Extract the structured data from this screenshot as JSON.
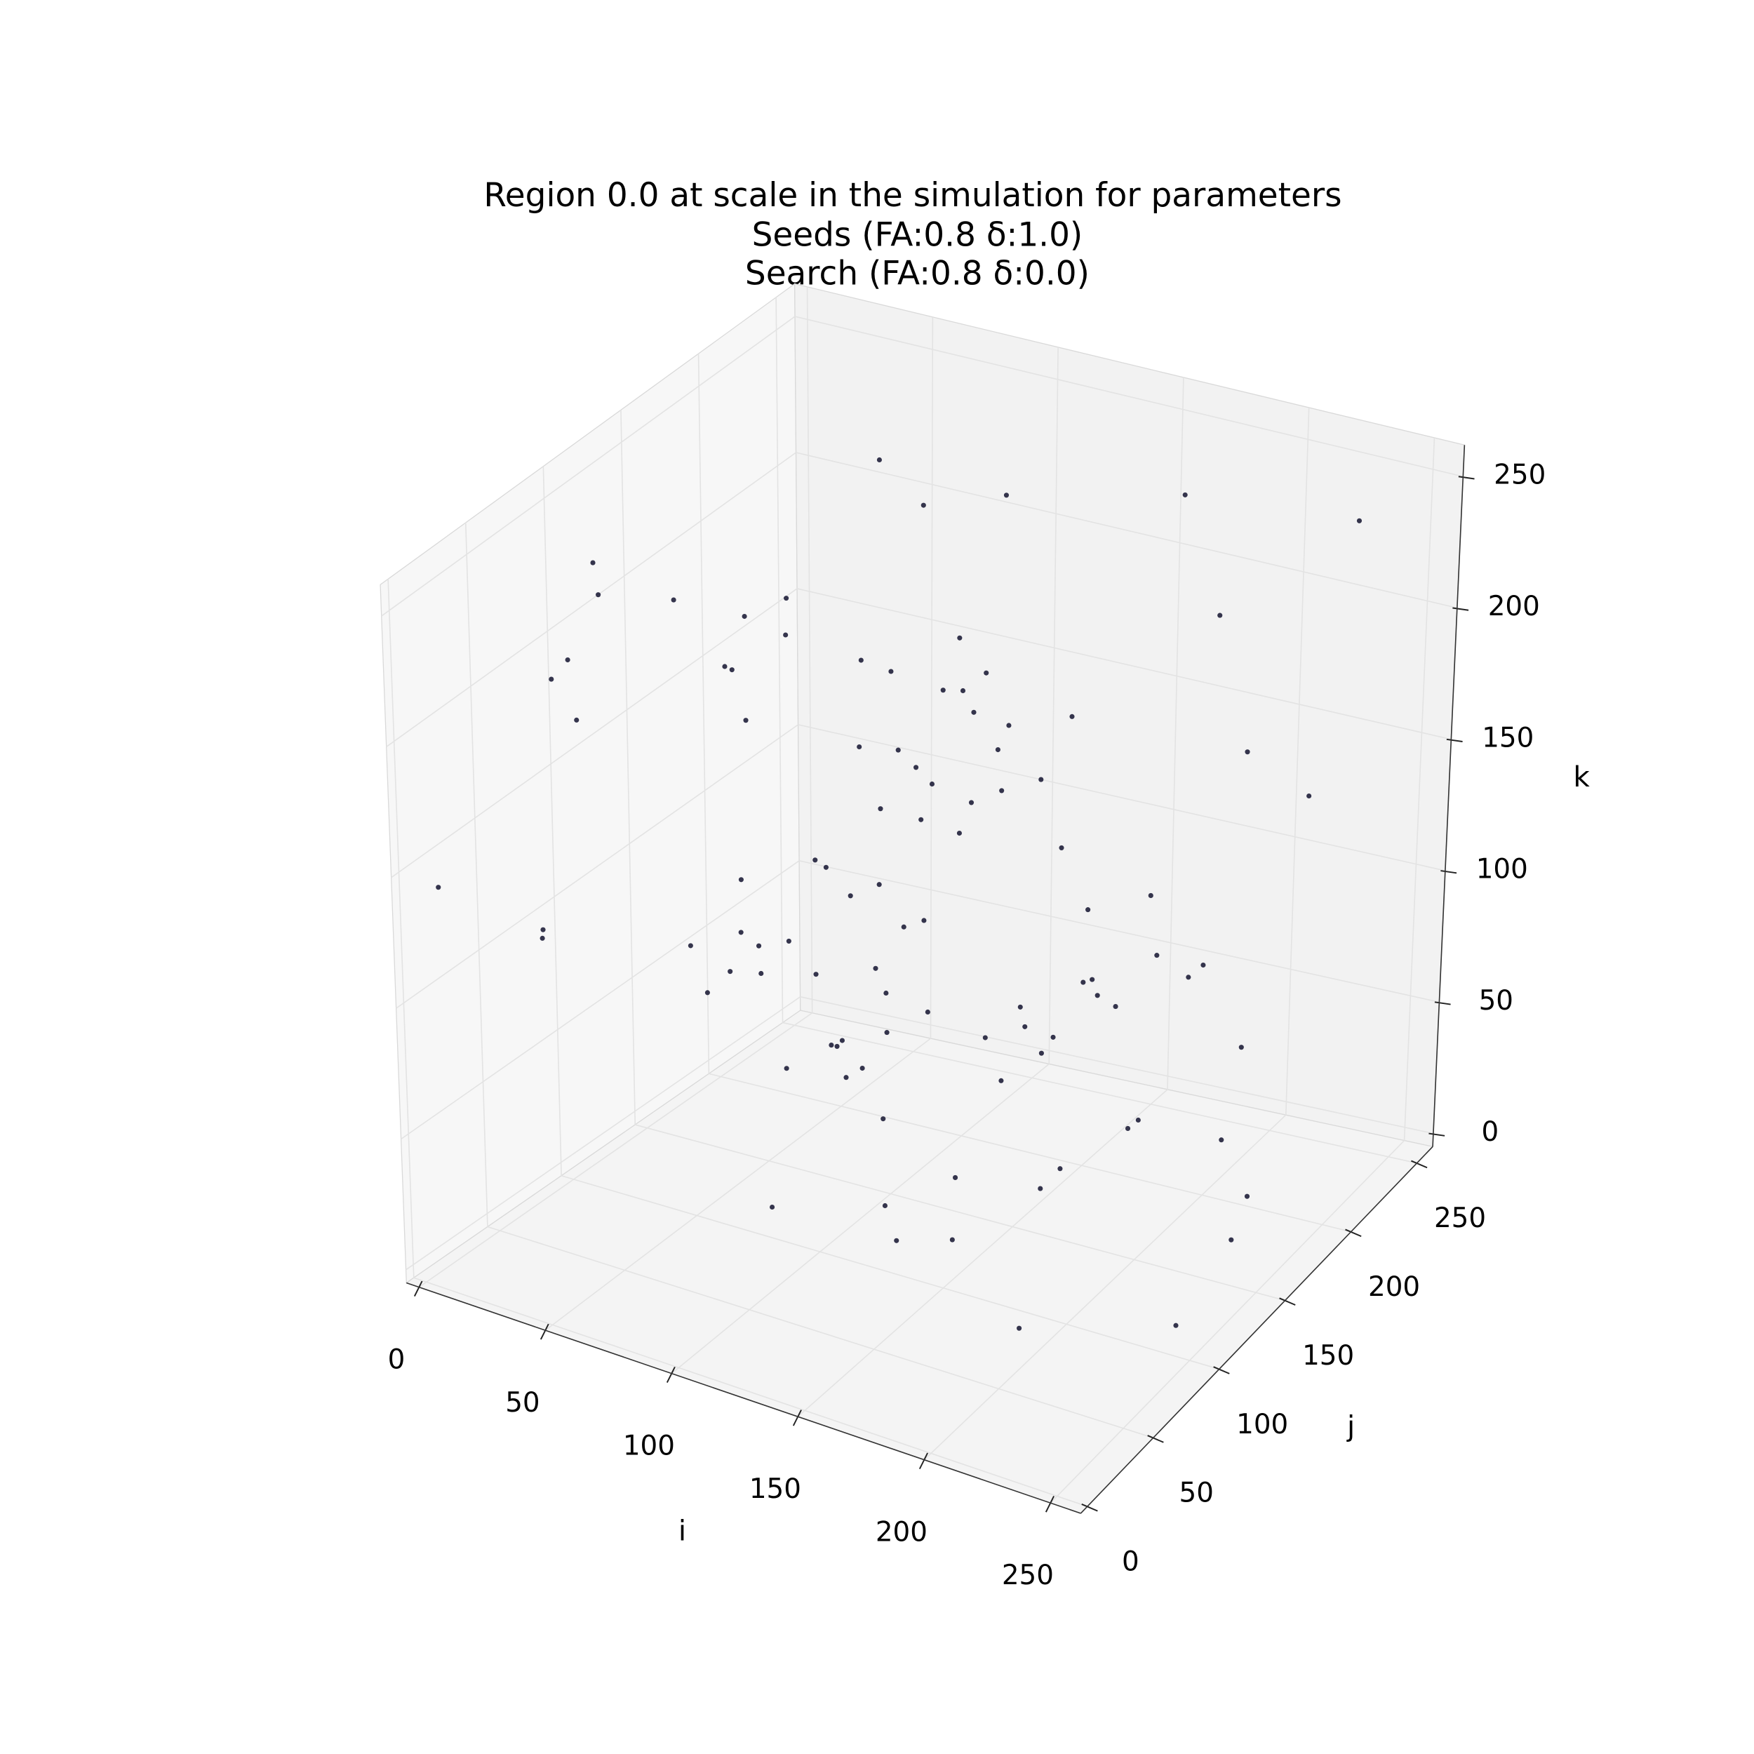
{
  "chart_data": {
    "type": "scatter3d",
    "title": [
      "Region 0.0 at scale in the simulation for parameters",
      "Seeds (FA:0.8 δ:1.0)",
      "Search (FA:0.8 δ:0.0)"
    ],
    "xlabel": "i",
    "ylabel": "j",
    "zlabel": "k",
    "xlim": [
      -5,
      262
    ],
    "ylim": [
      -5,
      262
    ],
    "zlim": [
      -5,
      262
    ],
    "xticks": [
      0,
      50,
      100,
      150,
      200,
      250
    ],
    "yticks": [
      0,
      50,
      100,
      150,
      200,
      250
    ],
    "zticks": [
      0,
      50,
      100,
      150,
      200,
      250
    ],
    "grid": true,
    "color": "#1f1f3a",
    "x": [
      12,
      45,
      78,
      130,
      201,
      233,
      67,
      154,
      98,
      187,
      23,
      245,
      110,
      56,
      176,
      140,
      88,
      210,
      34,
      163,
      120,
      72,
      195,
      8,
      148,
      226,
      61,
      105,
      182,
      39,
      137,
      250,
      91,
      17,
      169,
      214,
      53,
      126,
      84,
      240,
      29,
      158,
      101,
      193,
      70,
      222,
      46,
      133,
      179,
      15,
      117,
      205,
      63,
      144,
      237,
      82,
      27,
      171,
      96,
      218,
      51,
      189,
      124,
      4,
      160,
      75,
      231,
      108,
      41,
      199,
      139,
      86,
      247,
      19,
      152,
      58,
      213,
      115,
      35,
      184,
      127,
      93,
      242,
      66,
      174,
      10,
      208,
      146,
      79,
      229,
      102,
      48,
      166,
      135,
      220,
      25,
      191,
      113,
      60,
      252
    ],
    "y": [
      200,
      33,
      150,
      88,
      12,
      240,
      175,
      61,
      119,
      225,
      45,
      98,
      210,
      134,
      7,
      187,
      70,
      253,
      159,
      26,
      111,
      233,
      52,
      168,
      90,
      19,
      144,
      206,
      81,
      245,
      37,
      129,
      182,
      65,
      218,
      104,
      14,
      196,
      155,
      73,
      228,
      48,
      137,
      101,
      250,
      22,
      171,
      86,
      212,
      59,
      140,
      3,
      193,
      117,
      40,
      236,
      163,
      95,
      29,
      180,
      126,
      68,
      247,
      10,
      152,
      214,
      83,
      31,
      198,
      108,
      57,
      221,
      146,
      175,
      1,
      132,
      92,
      239,
      66,
      185,
      18,
      161,
      115,
      205,
      42,
      230,
      77,
      124,
      252,
      6,
      169,
      93,
      36,
      214,
      147,
      80,
      243,
      55,
      190,
      123
    ],
    "z": [
      130,
      210,
      45,
      177,
      95,
      238,
      20,
      152,
      66,
      199,
      115,
      8,
      233,
      84,
      160,
      41,
      246,
      122,
      73,
      188,
      13,
      141,
      221,
      58,
      104,
      252,
      35,
      167,
      92,
      214,
      181,
      26,
      139,
      203,
      70,
      118,
      244,
      51,
      157,
      98,
      2,
      227,
      86,
      174,
      133,
      39,
      196,
      61,
      249,
      110,
      145,
      77,
      15,
      232,
      168,
      100,
      55,
      208,
      124,
      30,
      190,
      236,
      64,
      143,
      11,
      219,
      87,
      170,
      43,
      121,
      251,
      96,
      33,
      162,
      206,
      75,
      128,
      18,
      240,
      112,
      57,
      185,
      136,
      24,
      222,
      149,
      68,
      201,
      5,
      165,
      90,
      230,
      48,
      154,
      109,
      243,
      28,
      137,
      80,
      216
    ]
  }
}
